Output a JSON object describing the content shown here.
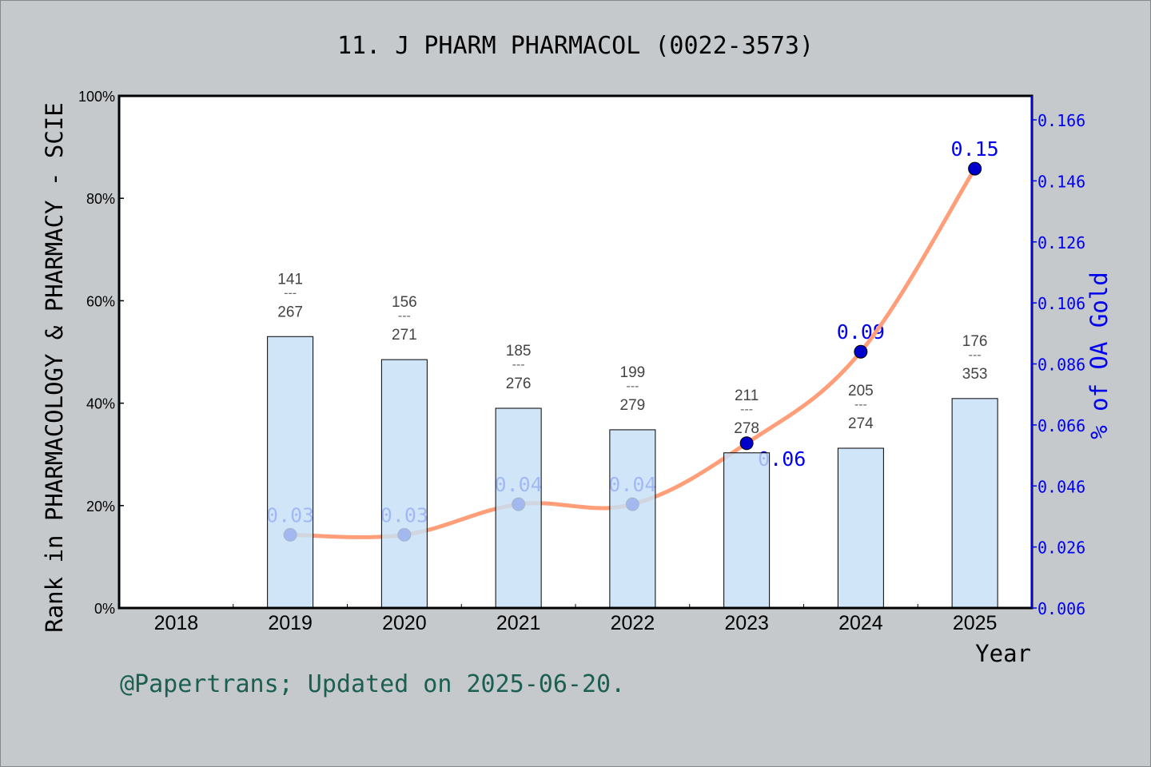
{
  "chart_data": {
    "type": "bar+line",
    "title": "11. J PHARM PHARMACOL (0022-3573)",
    "xlabel": "Year",
    "ylabel_left": "Rank in PHARMACOLOGY & PHARMACY - SCIE",
    "ylabel_right": "% of OA Gold",
    "categories": [
      "2018",
      "2019",
      "2020",
      "2021",
      "2022",
      "2023",
      "2024",
      "2025"
    ],
    "left_axis": {
      "ylim": [
        0,
        100
      ],
      "ticks": [
        "0%",
        "20%",
        "40%",
        "60%",
        "80%",
        "100%"
      ]
    },
    "right_axis": {
      "ylim": [
        0.006,
        0.166
      ],
      "ticks": [
        "0.006",
        "0.026",
        "0.046",
        "0.066",
        "0.086",
        "0.106",
        "0.126",
        "0.146",
        "0.166"
      ]
    },
    "bars": {
      "values_percent": [
        null,
        53.0,
        48.5,
        39.0,
        34.8,
        30.3,
        31.2,
        40.9
      ],
      "rank_labels": [
        null,
        {
          "rank": "141",
          "total": "267"
        },
        {
          "rank": "156",
          "total": "271"
        },
        {
          "rank": "185",
          "total": "276"
        },
        {
          "rank": "199",
          "total": "279"
        },
        {
          "rank": "211",
          "total": "278"
        },
        {
          "rank": "205",
          "total": "274"
        },
        {
          "rank": "176",
          "total": "353"
        }
      ],
      "separator": "---",
      "color": "#c6e0f6"
    },
    "line": {
      "values": [
        null,
        0.03,
        0.03,
        0.04,
        0.04,
        0.06,
        0.09,
        0.15
      ],
      "labels": [
        null,
        "0.03",
        "0.03",
        "0.04",
        "0.04",
        "0.06",
        "0.09",
        "0.15"
      ],
      "line_color": "#ff9e78",
      "marker_color": "#0000cc"
    },
    "grid": false,
    "footer": "@Papertrans; Updated on 2025-06-20.",
    "footer_color": "#1b5e52"
  }
}
